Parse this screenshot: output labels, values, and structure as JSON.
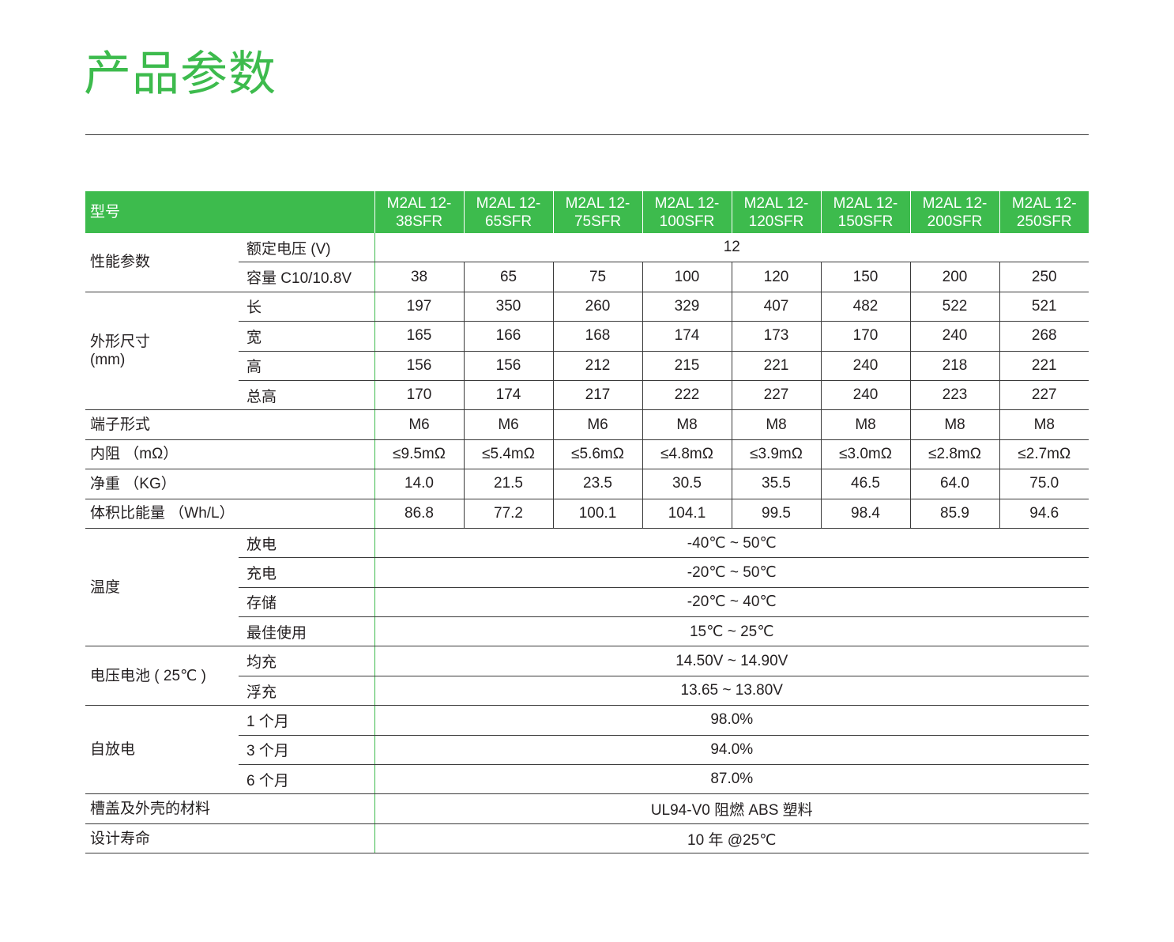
{
  "title": "产品参数",
  "header": {
    "label": "型号",
    "models": [
      [
        "M2AL 12-",
        "38SFR"
      ],
      [
        "M2AL 12-",
        "65SFR"
      ],
      [
        "M2AL 12-",
        "75SFR"
      ],
      [
        "M2AL 12-",
        "100SFR"
      ],
      [
        "M2AL 12-",
        "120SFR"
      ],
      [
        "M2AL 12-",
        "150SFR"
      ],
      [
        "M2AL 12-",
        "200SFR"
      ],
      [
        "M2AL 12-",
        "250SFR"
      ]
    ]
  },
  "performance": {
    "label": "性能参数",
    "voltage_label": "额定电压 (V)",
    "voltage_value": "12",
    "capacity_label": "容量 C10/10.8V",
    "capacity": [
      "38",
      "65",
      "75",
      "100",
      "120",
      "150",
      "200",
      "250"
    ]
  },
  "dimensions": {
    "label_1": "外形尺寸",
    "label_2": "(mm)",
    "rows": [
      {
        "name": "长",
        "values": [
          "197",
          "350",
          "260",
          "329",
          "407",
          "482",
          "522",
          "521"
        ]
      },
      {
        "name": "宽",
        "values": [
          "165",
          "166",
          "168",
          "174",
          "173",
          "170",
          "240",
          "268"
        ]
      },
      {
        "name": "高",
        "values": [
          "156",
          "156",
          "212",
          "215",
          "221",
          "240",
          "218",
          "221"
        ]
      },
      {
        "name": "总高",
        "values": [
          "170",
          "174",
          "217",
          "222",
          "227",
          "240",
          "223",
          "227"
        ]
      }
    ]
  },
  "terminal": {
    "label": "端子形式",
    "values": [
      "M6",
      "M6",
      "M6",
      "M8",
      "M8",
      "M8",
      "M8",
      "M8"
    ]
  },
  "resistance": {
    "label": "内阻 （mΩ）",
    "values": [
      "≤9.5mΩ",
      "≤5.4mΩ",
      "≤5.6mΩ",
      "≤4.8mΩ",
      "≤3.9mΩ",
      "≤3.0mΩ",
      "≤2.8mΩ",
      "≤2.7mΩ"
    ]
  },
  "weight": {
    "label": "净重 （KG）",
    "values": [
      "14.0",
      "21.5",
      "23.5",
      "30.5",
      "35.5",
      "46.5",
      "64.0",
      "75.0"
    ]
  },
  "energy_density": {
    "label": "体积比能量 （Wh/L）",
    "values": [
      "86.8",
      "77.2",
      "100.1",
      "104.1",
      "99.5",
      "98.4",
      "85.9",
      "94.6"
    ]
  },
  "temperature": {
    "label": "温度",
    "rows": [
      {
        "name": "放电",
        "value": "-40℃ ~ 50℃"
      },
      {
        "name": "充电",
        "value": "-20℃ ~ 50℃"
      },
      {
        "name": "存储",
        "value": "-20℃ ~ 40℃"
      },
      {
        "name": "最佳使用",
        "value": "15℃ ~ 25℃"
      }
    ]
  },
  "voltage_battery": {
    "label": "电压电池 ( 25℃ )",
    "rows": [
      {
        "name": "均充",
        "value": "14.50V ~ 14.90V"
      },
      {
        "name": "浮充",
        "value": "13.65 ~ 13.80V"
      }
    ]
  },
  "self_discharge": {
    "label": "自放电",
    "rows": [
      {
        "name": "1 个月",
        "value": "98.0%"
      },
      {
        "name": "3 个月",
        "value": "94.0%"
      },
      {
        "name": "6 个月",
        "value": "87.0%"
      }
    ]
  },
  "material": {
    "label": "槽盖及外壳的材料",
    "value": "UL94-V0 阻燃 ABS 塑料"
  },
  "design_life": {
    "label": "设计寿命",
    "value": "10 年 @25℃"
  }
}
